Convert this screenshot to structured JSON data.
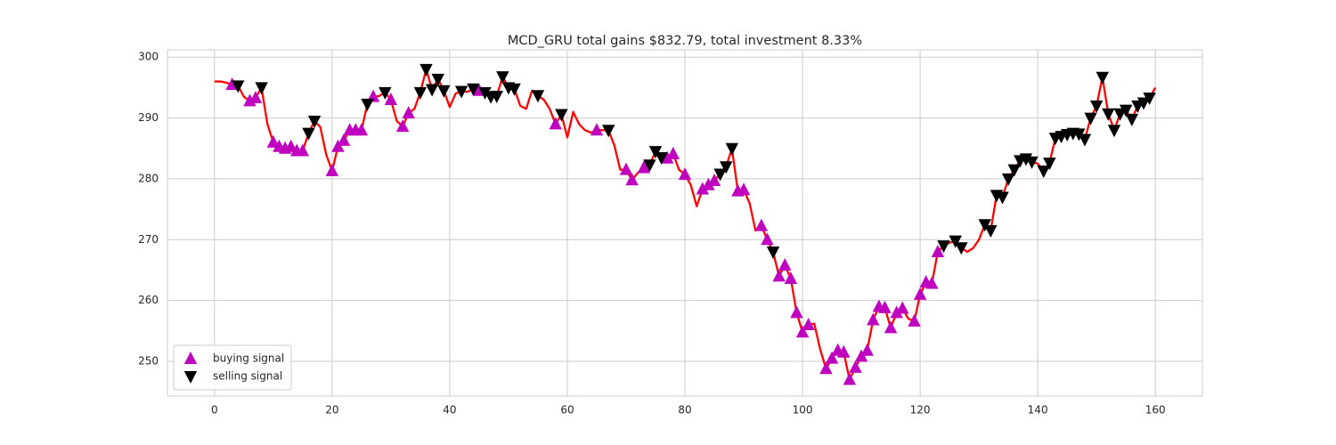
{
  "chart_data": {
    "type": "line",
    "title": "MCD_GRU total gains $832.79, total investment 8.33%",
    "xlim": [
      -8,
      168
    ],
    "ylim": [
      244.3,
      301.2
    ],
    "xticks": [
      0,
      20,
      40,
      60,
      80,
      100,
      120,
      140,
      160
    ],
    "yticks": [
      250,
      260,
      270,
      280,
      290,
      300
    ],
    "grid": true,
    "legend": "lower left",
    "series": [
      {
        "color": "#ff0000",
        "x": [
          0,
          1,
          2,
          3,
          4,
          5,
          6,
          7,
          8,
          9,
          10,
          11,
          12,
          13,
          14,
          15,
          16,
          17,
          18,
          19,
          20,
          21,
          22,
          23,
          24,
          25,
          26,
          27,
          28,
          29,
          30,
          31,
          32,
          33,
          34,
          35,
          36,
          37,
          38,
          39,
          40,
          41,
          42,
          43,
          44,
          45,
          46,
          47,
          48,
          49,
          50,
          51,
          52,
          53,
          54,
          55,
          56,
          57,
          58,
          59,
          60,
          61,
          62,
          63,
          64,
          65,
          66,
          67,
          68,
          69,
          70,
          71,
          72,
          73,
          74,
          75,
          76,
          77,
          78,
          79,
          80,
          81,
          82,
          83,
          84,
          85,
          86,
          87,
          88,
          89,
          90,
          91,
          92,
          93,
          94,
          95,
          96,
          97,
          98,
          99,
          100,
          101,
          102,
          103,
          104,
          105,
          106,
          107,
          108,
          109,
          110,
          111,
          112,
          113,
          114,
          115,
          116,
          117,
          118,
          119,
          120,
          121,
          122,
          123,
          124,
          125,
          126,
          127,
          128,
          129,
          130,
          131,
          132,
          133,
          134,
          135,
          136,
          137,
          138,
          139,
          140,
          141,
          142,
          143,
          144,
          145,
          146,
          147,
          148,
          149,
          150,
          151,
          152,
          153,
          154,
          155,
          156,
          157,
          158,
          159,
          160
        ],
        "values": [
          296,
          296,
          295.8,
          295.5,
          295.3,
          293.5,
          292.8,
          293.3,
          295,
          289,
          286,
          285.3,
          285,
          285.3,
          284.6,
          284.6,
          287.5,
          289.5,
          288.5,
          284,
          281.3,
          285.3,
          286.3,
          288,
          288,
          288,
          292.3,
          293.5,
          293.6,
          294.2,
          293,
          289.5,
          288.6,
          290.8,
          291.5,
          294.2,
          298,
          294.7,
          296.4,
          294.5,
          291.8,
          294,
          294.4,
          294.3,
          294.8,
          294.5,
          294.2,
          293.5,
          293.6,
          296.8,
          295,
          294.8,
          292,
          291.5,
          294.5,
          293.7,
          293,
          291.5,
          289,
          290.6,
          286.8,
          291,
          289,
          288,
          287.6,
          288,
          288,
          288,
          285.5,
          281.5,
          281.5,
          279.8,
          281,
          281.8,
          282.3,
          284.5,
          283.5,
          283.4,
          284.1,
          281.5,
          280.7,
          279,
          275.5,
          278.3,
          279,
          279.7,
          280.8,
          282,
          285,
          278,
          278.2,
          276,
          271.5,
          272.3,
          270,
          268,
          264,
          265.8,
          263.6,
          258,
          254.8,
          256,
          256.2,
          252,
          248.8,
          250.5,
          251.8,
          251.5,
          247,
          249,
          250.8,
          251.8,
          256.8,
          259,
          258.8,
          255.5,
          258,
          258.7,
          257,
          256.6,
          261,
          263,
          262.8,
          268,
          269,
          269.5,
          269.8,
          268.7,
          268,
          268.6,
          270,
          272.5,
          271.5,
          277.3,
          277,
          280,
          281.5,
          283,
          283.3,
          282.8,
          282.5,
          281.3,
          282.6,
          286.7,
          287,
          287.3,
          287.5,
          287.4,
          286.5,
          290,
          292,
          296.7,
          290.7,
          288,
          290.7,
          291.3,
          289.8,
          292,
          292.5,
          293.3,
          295
        ]
      },
      {
        "name": "buying signal",
        "color": "#bf00bf",
        "marker": "^",
        "x": [
          3,
          6,
          7,
          10,
          11,
          12,
          13,
          14,
          15,
          20,
          21,
          22,
          23,
          24,
          25,
          27,
          30,
          32,
          33,
          45,
          58,
          65,
          70,
          71,
          73,
          77,
          78,
          80,
          83,
          84,
          85,
          89,
          90,
          93,
          94,
          96,
          97,
          98,
          99,
          100,
          101,
          104,
          105,
          106,
          107,
          108,
          109,
          110,
          111,
          112,
          113,
          114,
          115,
          116,
          117,
          119,
          120,
          121,
          122,
          123
        ],
        "values": [
          295.5,
          292.8,
          293.3,
          286,
          285.3,
          285,
          285.3,
          284.6,
          284.6,
          281.3,
          285.3,
          286.3,
          288,
          288,
          288,
          293.5,
          293,
          288.6,
          290.8,
          294.5,
          289,
          288,
          281.5,
          279.8,
          281.8,
          283.4,
          284.1,
          280.7,
          278.3,
          279,
          279.7,
          278,
          278.2,
          272.3,
          270,
          264,
          265.8,
          263.6,
          258,
          254.8,
          256,
          248.8,
          250.5,
          251.8,
          251.5,
          247,
          249,
          250.8,
          251.8,
          256.8,
          259,
          258.8,
          255.5,
          258,
          258.7,
          256.6,
          261,
          263,
          262.8,
          268
        ]
      },
      {
        "name": "selling signal",
        "color": "#000000",
        "marker": "v",
        "x": [
          4,
          8,
          16,
          17,
          26,
          29,
          35,
          36,
          37,
          38,
          39,
          42,
          44,
          46,
          47,
          48,
          49,
          50,
          51,
          55,
          59,
          67,
          74,
          75,
          76,
          86,
          87,
          88,
          95,
          124,
          126,
          127,
          131,
          132,
          133,
          134,
          135,
          136,
          137,
          138,
          139,
          141,
          142,
          143,
          144,
          145,
          146,
          147,
          148,
          149,
          150,
          151,
          152,
          153,
          154,
          155,
          156,
          157,
          158,
          159
        ],
        "values": [
          295.3,
          295,
          287.5,
          289.5,
          292.3,
          294.2,
          294.2,
          298,
          294.7,
          296.4,
          294.5,
          294.4,
          294.8,
          294.2,
          293.5,
          293.6,
          296.8,
          295,
          294.8,
          293.7,
          290.6,
          288,
          282.3,
          284.5,
          283.5,
          280.8,
          282,
          285,
          268,
          269,
          269.8,
          268.7,
          272.5,
          271.5,
          277.3,
          277,
          280,
          281.5,
          283,
          283.3,
          282.8,
          281.3,
          282.6,
          286.7,
          287,
          287.3,
          287.5,
          287.4,
          286.5,
          290,
          292,
          296.7,
          290.7,
          288,
          290.7,
          291.3,
          289.8,
          292,
          292.5,
          293.3
        ]
      }
    ]
  }
}
